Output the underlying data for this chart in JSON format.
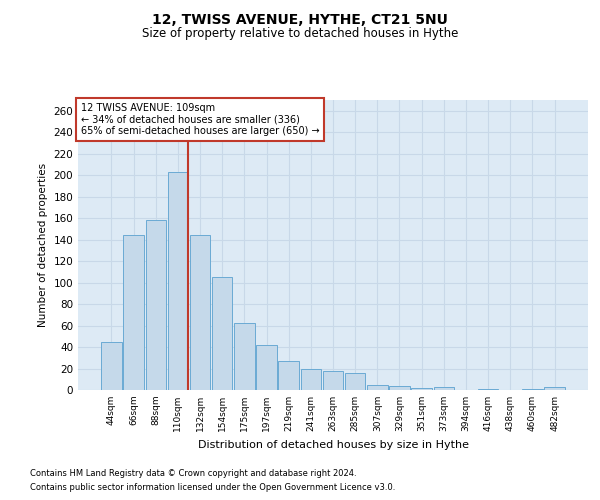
{
  "title": "12, TWISS AVENUE, HYTHE, CT21 5NU",
  "subtitle": "Size of property relative to detached houses in Hythe",
  "xlabel": "Distribution of detached houses by size in Hythe",
  "ylabel": "Number of detached properties",
  "footnote1": "Contains HM Land Registry data © Crown copyright and database right 2024.",
  "footnote2": "Contains public sector information licensed under the Open Government Licence v3.0.",
  "annotation_line1": "12 TWISS AVENUE: 109sqm",
  "annotation_line2": "← 34% of detached houses are smaller (336)",
  "annotation_line3": "65% of semi-detached houses are larger (650) →",
  "bar_color": "#c5d9ea",
  "bar_edge_color": "#6aaad4",
  "vline_color": "#c0392b",
  "categories": [
    "44sqm",
    "66sqm",
    "88sqm",
    "110sqm",
    "132sqm",
    "154sqm",
    "175sqm",
    "197sqm",
    "219sqm",
    "241sqm",
    "263sqm",
    "285sqm",
    "307sqm",
    "329sqm",
    "351sqm",
    "373sqm",
    "394sqm",
    "416sqm",
    "438sqm",
    "460sqm",
    "482sqm"
  ],
  "values": [
    45,
    144,
    158,
    203,
    144,
    105,
    62,
    42,
    27,
    20,
    18,
    16,
    5,
    4,
    2,
    3,
    0,
    1,
    0,
    1,
    3
  ],
  "ylim": [
    0,
    270
  ],
  "yticks": [
    0,
    20,
    40,
    60,
    80,
    100,
    120,
    140,
    160,
    180,
    200,
    220,
    240,
    260
  ],
  "grid_color": "#c8d8e8",
  "bg_color": "#ddeaf5",
  "fig_bg_color": "#ffffff",
  "vline_x_index": 3
}
